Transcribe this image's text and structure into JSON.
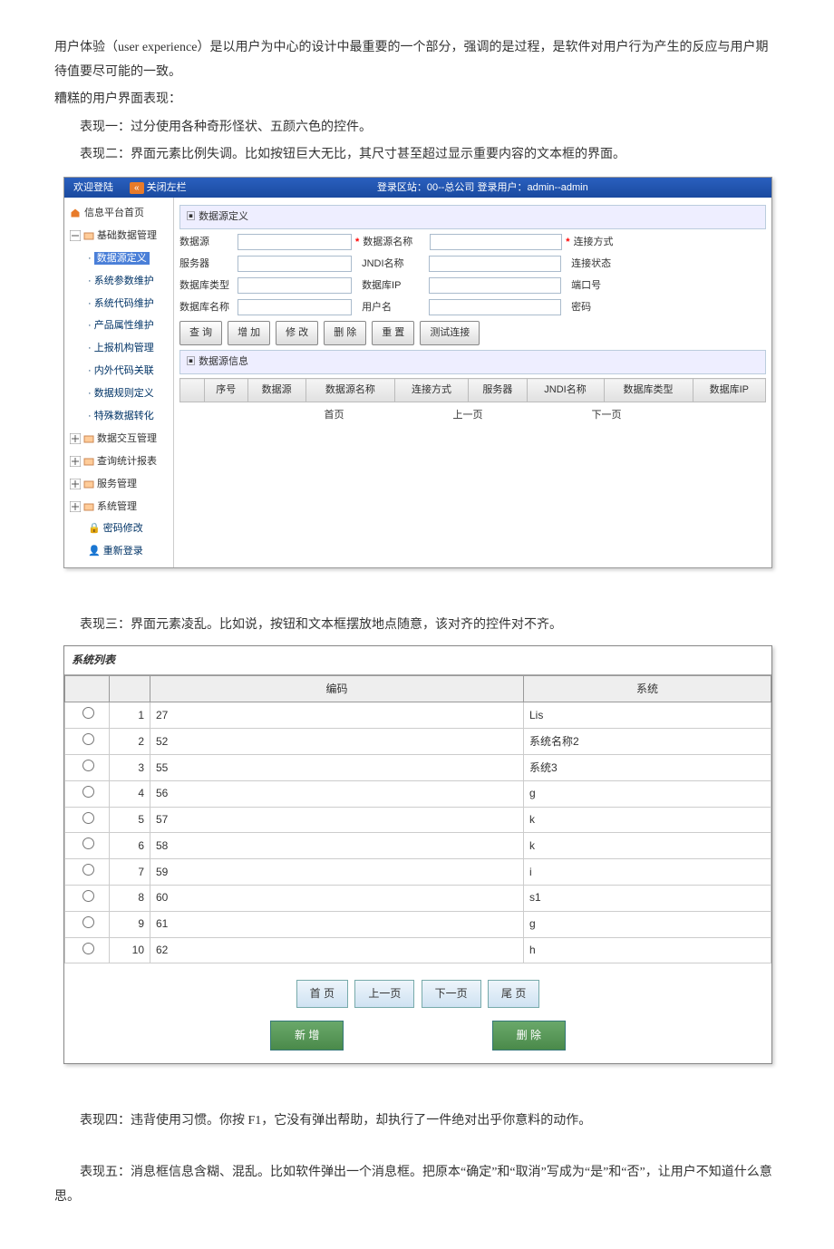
{
  "para1": "用户体验（user experience）是以用户为中心的设计中最重要的一个部分，强调的是过程，是软件对用户行为产生的反应与用户期待值要尽可能的一致。",
  "para2": "糟糕的用户界面表现：",
  "item1": "表现一：过分使用各种奇形怪状、五颜六色的控件。",
  "item2": "表现二：界面元素比例失调。比如按钮巨大无比，其尺寸甚至超过显示重要内容的文本框的界面。",
  "item3": "表现三：界面元素凌乱。比如说，按钮和文本框摆放地点随意，该对齐的控件对不齐。",
  "item4": "表现四：违背使用习惯。你按 F1，它没有弹出帮助，却执行了一件绝对出乎你意料的动作。",
  "item5": "表现五：消息框信息含糊、混乱。比如软件弹出一个消息框。把原本“确定”和“取消”写成为“是”和“否”，让用户不知道什么意思。",
  "s1": {
    "topbar_welcome": "欢迎登陆",
    "topbar_close": "关闭左栏",
    "topbar_info": "登录区站：00--总公司  登录用户：admin--admin",
    "side_home": "信息平台首页",
    "side_group1": "基础数据管理",
    "side_g1_items": [
      "数据源定义",
      "系统参数维护",
      "系统代码维护",
      "产品属性维护",
      "上报机构管理",
      "内外代码关联",
      "数据规则定义",
      "特殊数据转化"
    ],
    "side_group2": "数据交互管理",
    "side_group3": "查询统计报表",
    "side_group4": "服务管理",
    "side_group5": "系统管理",
    "side_pwd": "密码修改",
    "side_relogin": "重新登录",
    "panel_def": "数据源定义",
    "f_ds": "数据源",
    "f_dsname": "数据源名称",
    "f_connmode": "连接方式",
    "f_server": "服务器",
    "f_jndi": "JNDI名称",
    "f_connstat": "连接状态",
    "f_dbtype": "数据库类型",
    "f_dbip": "数据库IP",
    "f_port": "端口号",
    "f_dbname": "数据库名称",
    "f_user": "用户名",
    "f_pwd": "密码",
    "btn_query": "查 询",
    "btn_add": "增 加",
    "btn_mod": "修 改",
    "btn_del": "删 除",
    "btn_reset": "重 置",
    "btn_test": "测试连接",
    "panel_info": "数据源信息",
    "cols": [
      "序号",
      "数据源",
      "数据源名称",
      "连接方式",
      "服务器",
      "JNDI名称",
      "数据库类型",
      "数据库IP"
    ],
    "pg_first": "首页",
    "pg_prev": "上一页",
    "pg_next": "下一页"
  },
  "s2": {
    "title": "系统列表",
    "col_code": "编码",
    "col_sys": "系统",
    "rows": [
      {
        "n": 1,
        "code": "27",
        "sys": "Lis"
      },
      {
        "n": 2,
        "code": "52",
        "sys": "系统名称2"
      },
      {
        "n": 3,
        "code": "55",
        "sys": "系统3"
      },
      {
        "n": 4,
        "code": "56",
        "sys": "g"
      },
      {
        "n": 5,
        "code": "57",
        "sys": "k"
      },
      {
        "n": 6,
        "code": "58",
        "sys": "k"
      },
      {
        "n": 7,
        "code": "59",
        "sys": "i"
      },
      {
        "n": 8,
        "code": "60",
        "sys": "s1"
      },
      {
        "n": 9,
        "code": "61",
        "sys": "g"
      },
      {
        "n": 10,
        "code": "62",
        "sys": "h"
      }
    ],
    "pg_first": "首 页",
    "pg_prev": "上一页",
    "pg_next": "下一页",
    "pg_last": "尾 页",
    "btn_new": "新 增",
    "btn_del": "删 除"
  }
}
